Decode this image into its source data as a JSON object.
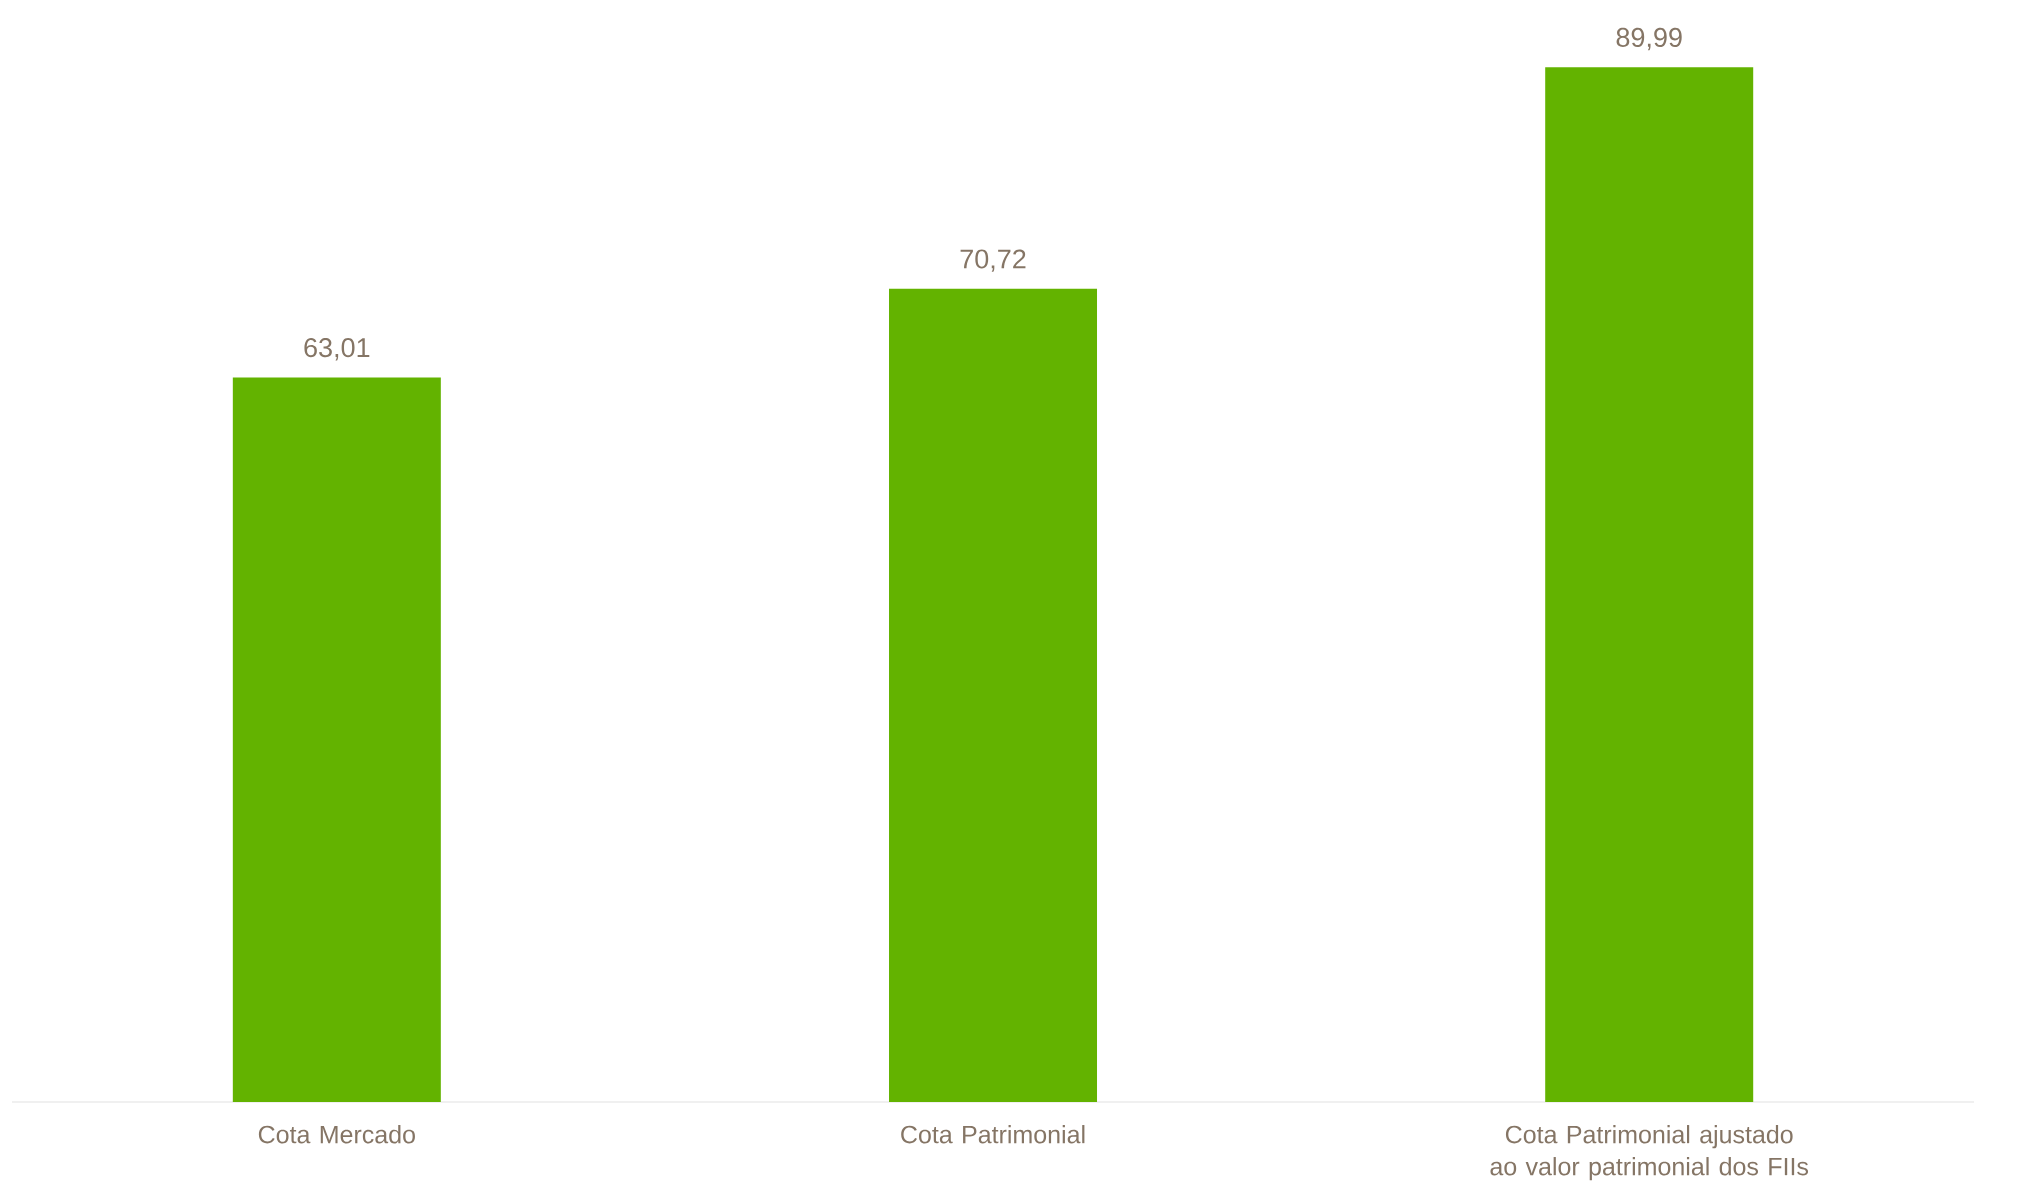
{
  "chart_data": {
    "type": "bar",
    "categories": [
      "Cota Mercado",
      "Cota Patrimonial",
      "Cota Patrimonial ajustado ao valor patrimonial dos FIIs"
    ],
    "values": [
      63.01,
      70.72,
      89.99
    ],
    "value_labels": [
      "63,01",
      "70,72",
      "89,99"
    ],
    "color": "#63b300"
  }
}
